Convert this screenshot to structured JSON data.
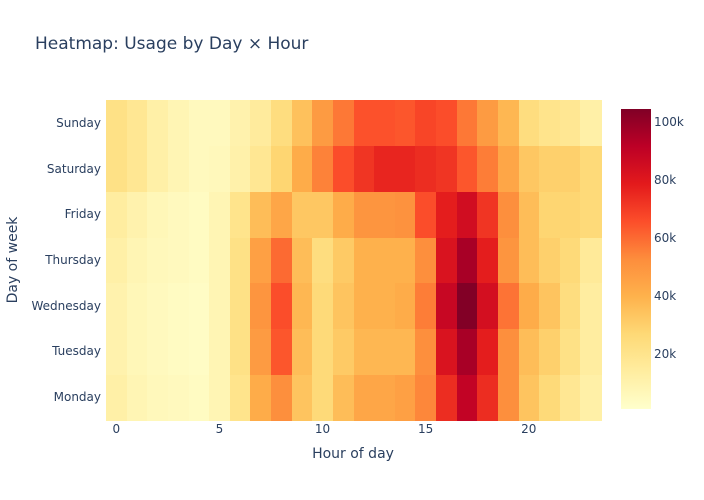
{
  "chart_data": {
    "type": "heatmap",
    "title": "Heatmap: Usage by Day × Hour",
    "xlabel": "Hour of day",
    "ylabel": "Day of week",
    "x": [
      0,
      1,
      2,
      3,
      4,
      5,
      6,
      7,
      8,
      9,
      10,
      11,
      12,
      13,
      14,
      15,
      16,
      17,
      18,
      19,
      20,
      21,
      22,
      23
    ],
    "y": [
      "Monday",
      "Tuesday",
      "Wednesday",
      "Thursday",
      "Friday",
      "Saturday",
      "Sunday"
    ],
    "x_ticks": [
      0,
      5,
      10,
      15,
      20
    ],
    "x_range": [
      -0.5,
      23.5
    ],
    "z": [
      [
        12000,
        8000,
        6000,
        5000,
        4000,
        8000,
        20000,
        42000,
        52000,
        34000,
        26000,
        36000,
        44000,
        44000,
        46000,
        54000,
        74000,
        90000,
        74000,
        52000,
        34000,
        26000,
        18000,
        12000
      ],
      [
        10000,
        7000,
        5000,
        4000,
        3000,
        8000,
        22000,
        48000,
        64000,
        36000,
        26000,
        32000,
        38000,
        38000,
        38000,
        52000,
        82000,
        96000,
        78000,
        52000,
        36000,
        30000,
        22000,
        14000
      ],
      [
        10000,
        7000,
        5000,
        4000,
        3000,
        8000,
        22000,
        50000,
        66000,
        38000,
        26000,
        34000,
        40000,
        40000,
        42000,
        56000,
        88000,
        104000,
        84000,
        58000,
        42000,
        34000,
        24000,
        14000
      ],
      [
        12000,
        8000,
        6000,
        5000,
        4000,
        8000,
        22000,
        46000,
        60000,
        36000,
        24000,
        32000,
        40000,
        40000,
        40000,
        52000,
        82000,
        96000,
        78000,
        50000,
        36000,
        30000,
        26000,
        16000
      ],
      [
        14000,
        10000,
        7000,
        5000,
        4000,
        8000,
        20000,
        36000,
        44000,
        33000,
        33000,
        42000,
        50000,
        50000,
        51000,
        66000,
        78000,
        85000,
        72000,
        52000,
        36000,
        28000,
        28000,
        26000
      ],
      [
        22000,
        18000,
        12000,
        8000,
        5000,
        6000,
        11000,
        18000,
        28000,
        42000,
        55000,
        66000,
        72000,
        76000,
        76000,
        74000,
        72000,
        64000,
        56000,
        44000,
        33000,
        30000,
        30000,
        26000
      ],
      [
        22000,
        18000,
        12000,
        8000,
        5000,
        5000,
        10000,
        15000,
        24000,
        35000,
        48000,
        57000,
        65000,
        65000,
        64000,
        68000,
        66000,
        57000,
        48000,
        38000,
        24000,
        20000,
        18000,
        12000
      ]
    ],
    "colorscale": "YlOrRd",
    "colorscale_stops": [
      [
        0.0,
        "#ffffcc"
      ],
      [
        0.125,
        "#ffeda0"
      ],
      [
        0.25,
        "#fed976"
      ],
      [
        0.375,
        "#feb24c"
      ],
      [
        0.5,
        "#fd8d3c"
      ],
      [
        0.625,
        "#fc4e2a"
      ],
      [
        0.75,
        "#e31a1c"
      ],
      [
        0.875,
        "#bd0026"
      ],
      [
        1.0,
        "#800026"
      ]
    ],
    "zmin": 1000,
    "zmax": 104500,
    "colorbar": {
      "ticks": [
        20000,
        40000,
        60000,
        80000,
        100000
      ],
      "tick_labels": [
        "20k",
        "40k",
        "60k",
        "80k",
        "100k"
      ]
    },
    "grid": false,
    "legend": "colorbar-right"
  }
}
